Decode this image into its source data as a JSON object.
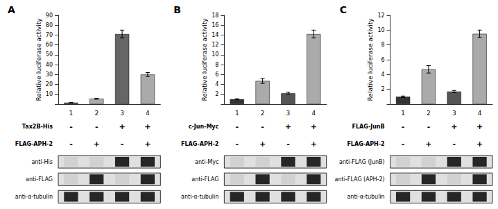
{
  "chart_data": [
    {
      "type": "bar",
      "title": "A",
      "ylabel": "Relative luciferase activity",
      "categories": [
        "1",
        "2",
        "3",
        "4"
      ],
      "values": [
        1.5,
        5.5,
        71.0,
        30.0
      ],
      "errors": [
        0.3,
        0.5,
        4.0,
        2.0
      ],
      "colors": [
        "#555555",
        "#aaaaaa",
        "#666666",
        "#aaaaaa"
      ],
      "ylim": [
        0,
        90
      ],
      "yticks": [
        {
          "value": 0,
          "label": ""
        },
        10,
        20,
        30,
        40,
        50,
        60,
        70,
        80,
        90
      ],
      "grid": false,
      "rows": [
        {
          "label": "Tax2B-His",
          "signs": [
            "-",
            "-",
            "+",
            "+"
          ]
        },
        {
          "label": "FLAG-APH-2",
          "signs": [
            "-",
            "+",
            "-",
            "+"
          ]
        }
      ],
      "blots": [
        {
          "label": "anti-His",
          "bands": [
            0,
            0,
            1,
            1
          ]
        },
        {
          "label": "anti-FLAG",
          "bands": [
            0,
            1,
            0,
            1
          ]
        },
        {
          "label": "anti-α-tubulin",
          "bands": [
            1,
            1,
            1,
            1
          ]
        }
      ]
    },
    {
      "type": "bar",
      "title": "B",
      "ylabel": "Relative luciferase activity",
      "categories": [
        "1",
        "2",
        "3",
        "4"
      ],
      "values": [
        1.0,
        4.7,
        2.2,
        14.2
      ],
      "errors": [
        0.1,
        0.5,
        0.2,
        0.8
      ],
      "colors": [
        "#333333",
        "#aaaaaa",
        "#555555",
        "#aaaaaa"
      ],
      "ylim": [
        0,
        18
      ],
      "yticks": [
        {
          "value": 0,
          "label": ""
        },
        2,
        4,
        6,
        8,
        10,
        12,
        14,
        16,
        18
      ],
      "grid": false,
      "rows": [
        {
          "label": "c-Jun-Myc",
          "signs": [
            "-",
            "-",
            "+",
            "+"
          ]
        },
        {
          "label": "FLAG-APH-2",
          "signs": [
            "-",
            "+",
            "-",
            "+"
          ]
        }
      ],
      "blots": [
        {
          "label": "anti-Myc",
          "bands": [
            0,
            0,
            1,
            1
          ]
        },
        {
          "label": "anti-FLAG",
          "bands": [
            0,
            1,
            0,
            1
          ]
        },
        {
          "label": "anti-α-tubulin",
          "bands": [
            1,
            1,
            1,
            1
          ]
        }
      ]
    },
    {
      "type": "bar",
      "title": "C",
      "ylabel": "Relative luciferase activity",
      "categories": [
        "1",
        "2",
        "3",
        "4"
      ],
      "values": [
        1.0,
        4.7,
        1.7,
        9.5
      ],
      "errors": [
        0.1,
        0.5,
        0.15,
        0.5
      ],
      "colors": [
        "#333333",
        "#aaaaaa",
        "#555555",
        "#aaaaaa"
      ],
      "ylim": [
        0,
        12
      ],
      "yticks": [
        {
          "value": 0,
          "label": ""
        },
        2,
        4,
        6,
        8,
        10,
        12
      ],
      "grid": false,
      "rows": [
        {
          "label": "FLAG-JunB",
          "signs": [
            "-",
            "-",
            "+",
            "+"
          ]
        },
        {
          "label": "FLAG-APH-2",
          "signs": [
            "-",
            "+",
            "-",
            "+"
          ]
        }
      ],
      "blots": [
        {
          "label": "anti-FLAG (JunB)",
          "bands": [
            0,
            0,
            1,
            1
          ]
        },
        {
          "label": "anti-FLAG (APH-2)",
          "bands": [
            0,
            1,
            0,
            1
          ]
        },
        {
          "label": "anti-α-tubulin",
          "bands": [
            1,
            1,
            1,
            1
          ]
        }
      ]
    }
  ]
}
